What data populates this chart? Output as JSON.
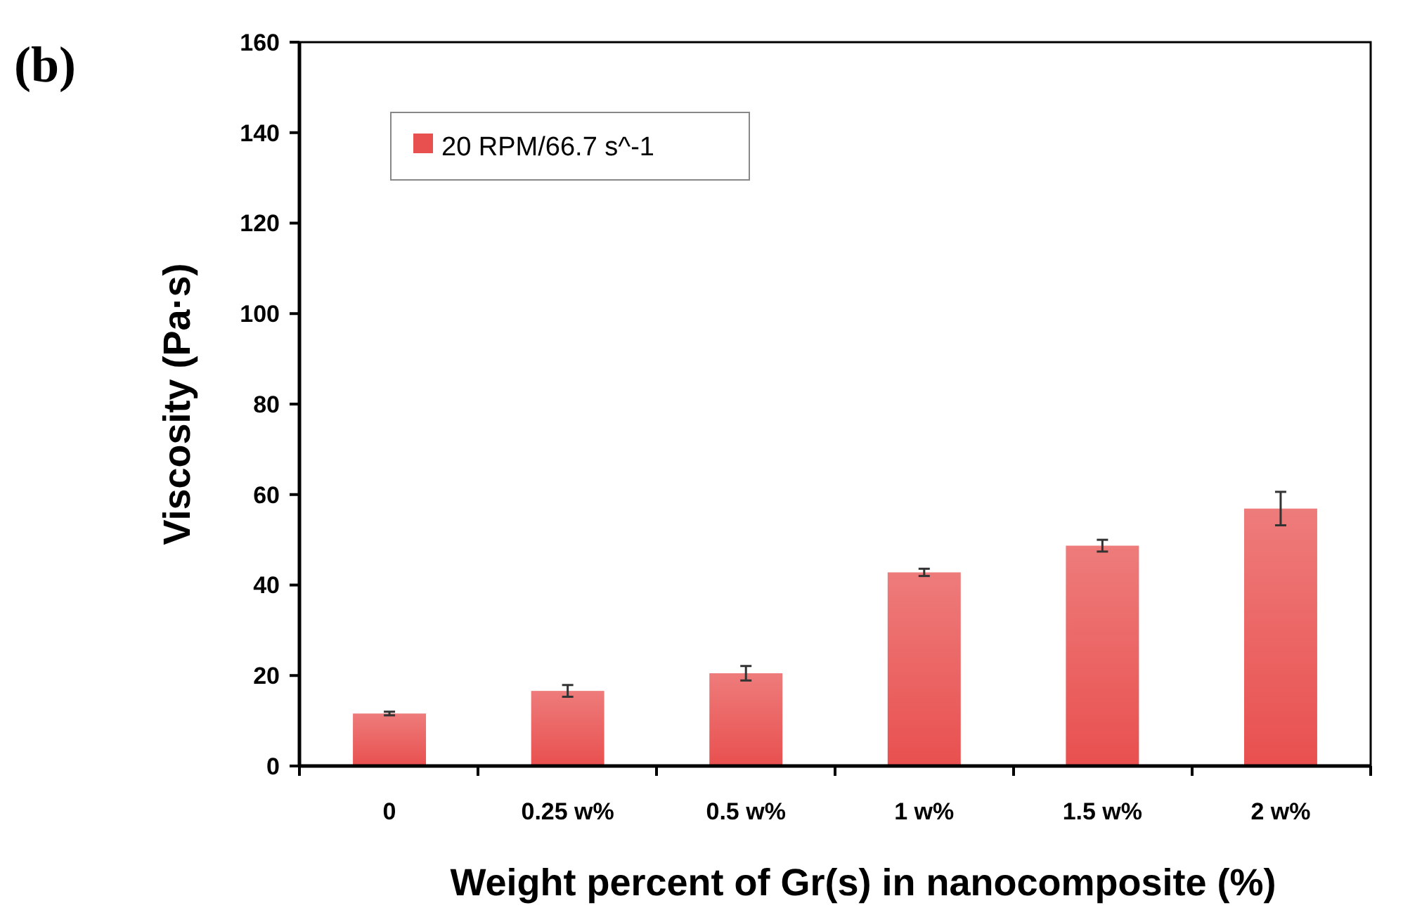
{
  "chart_data": {
    "type": "bar",
    "annotations": [
      "(b)"
    ],
    "xlabel": "Weight percent of Gr(s) in nanocomposite (%)",
    "ylabel": "Viscosity (Pa·s)",
    "categories": [
      "0",
      "0.25 w%",
      "0.5 w%",
      "1 w%",
      "1.5 w%",
      "2 w%"
    ],
    "series": [
      {
        "name": "20 RPM/66.7 s^-1",
        "color": "#e8504f",
        "values": [
          11.6,
          16.6,
          20.5,
          42.8,
          48.7,
          56.9
        ],
        "errors": [
          0.4,
          1.3,
          1.6,
          0.8,
          1.3,
          3.7
        ]
      }
    ],
    "ylim": [
      0,
      160
    ],
    "yticks": [
      0,
      20,
      40,
      60,
      80,
      100,
      120,
      140,
      160
    ],
    "legend": "top left",
    "grid": false
  }
}
